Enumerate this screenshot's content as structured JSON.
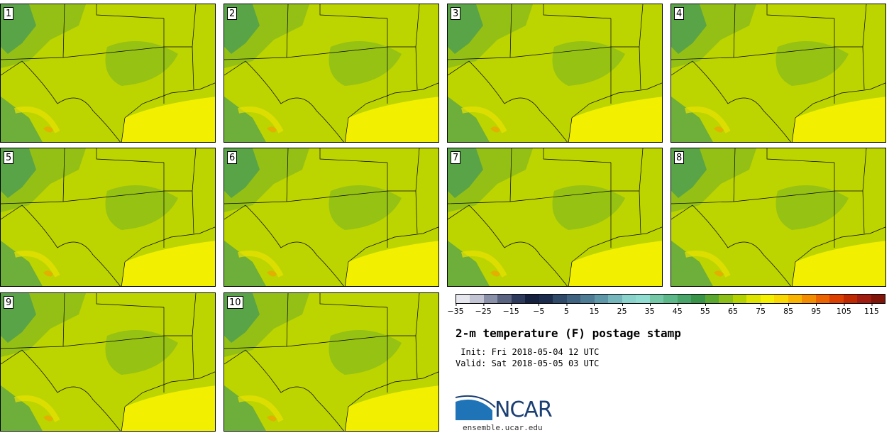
{
  "panels": [
    {
      "label": "1"
    },
    {
      "label": "2"
    },
    {
      "label": "3"
    },
    {
      "label": "4"
    },
    {
      "label": "5"
    },
    {
      "label": "6"
    },
    {
      "label": "7"
    },
    {
      "label": "8"
    },
    {
      "label": "9"
    },
    {
      "label": "10"
    }
  ],
  "colorbar": {
    "colors": [
      "#e6e6ee",
      "#c2c4d4",
      "#8a90a8",
      "#5a6380",
      "#2e3a5c",
      "#16213f",
      "#1c2c4c",
      "#2e4a68",
      "#3e6280",
      "#4e7c94",
      "#5e98a8",
      "#74b6bc",
      "#8ad2cc",
      "#90dcd0",
      "#74c8a8",
      "#5cb888",
      "#48a468",
      "#3a9448",
      "#5aa830",
      "#8cbe18",
      "#b4d200",
      "#dce400",
      "#f4f000",
      "#f8d800",
      "#f8b400",
      "#f48c00",
      "#ec6400",
      "#dc4000",
      "#c02800",
      "#a01c10",
      "#801408"
    ],
    "tick_labels": [
      "−35",
      "−25",
      "−15",
      "−5",
      "5",
      "15",
      "25",
      "35",
      "45",
      "55",
      "65",
      "75",
      "85",
      "95",
      "105",
      "115"
    ]
  },
  "title": "2-m temperature (F) postage stamp",
  "init_text": " Init: Fri 2018-05-04 12 UTC",
  "valid_text": "Valid: Sat 2018-05-05 03 UTC",
  "logo": {
    "text": "NCAR"
  },
  "url": "ensemble.ucar.edu",
  "colors": {
    "gulf": "#f2f000",
    "land_mid": "#bcd400",
    "land_green": "#8fbe18",
    "mountain": "#5aa448"
  }
}
